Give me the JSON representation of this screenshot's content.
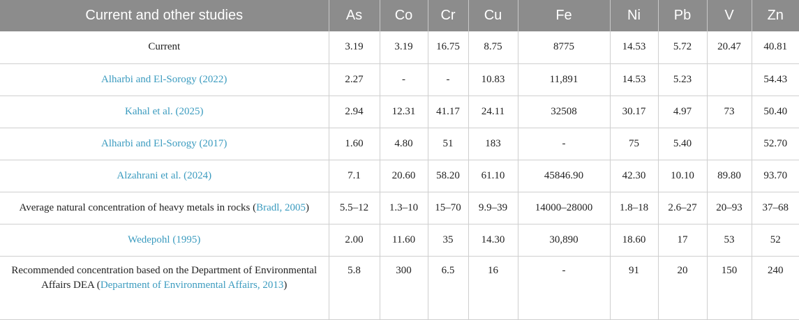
{
  "table": {
    "headers": [
      "Current and other studies",
      "As",
      "Co",
      "Cr",
      "Cu",
      "Fe",
      "Ni",
      "Pb",
      "V",
      "Zn"
    ],
    "rows": [
      {
        "study": {
          "pre": "Current",
          "ref": "",
          "post": ""
        },
        "values": [
          "3.19",
          "3.19",
          "16.75",
          "8.75",
          "8775",
          "14.53",
          "5.72",
          "20.47",
          "40.81"
        ]
      },
      {
        "study": {
          "pre": "",
          "ref": "Alharbi and El-Sorogy (2022)",
          "post": ""
        },
        "values": [
          "2.27",
          "-",
          "-",
          "10.83",
          "11,891",
          "14.53",
          "5.23",
          "",
          "54.43"
        ]
      },
      {
        "study": {
          "pre": "",
          "ref": "Kahal et al. (2025)",
          "post": ""
        },
        "values": [
          "2.94",
          "12.31",
          "41.17",
          "24.11",
          "32508",
          "30.17",
          "4.97",
          "73",
          "50.40"
        ]
      },
      {
        "study": {
          "pre": "",
          "ref": "Alharbi and El-Sorogy (2017)",
          "post": ""
        },
        "values": [
          "1.60",
          "4.80",
          "51",
          "183",
          "-",
          "75",
          "5.40",
          "",
          "52.70"
        ]
      },
      {
        "study": {
          "pre": "",
          "ref": "Alzahrani et al. (2024)",
          "post": ""
        },
        "values": [
          "7.1",
          "20.60",
          "58.20",
          "61.10",
          "45846.90",
          "42.30",
          "10.10",
          "89.80",
          "93.70"
        ]
      },
      {
        "study": {
          "pre": "Average natural concentration of heavy metals in rocks (",
          "ref": "Bradl, 2005",
          "post": ")"
        },
        "values": [
          "5.5–12",
          "1.3–10",
          "15–70",
          "9.9–39",
          "14000–28000",
          "1.8–18",
          "2.6–27",
          "20–93",
          "37–68"
        ]
      },
      {
        "study": {
          "pre": "",
          "ref": "Wedepohl (1995)",
          "post": ""
        },
        "values": [
          "2.00",
          "11.60",
          "35",
          "14.30",
          "30,890",
          "18.60",
          "17",
          "53",
          "52"
        ]
      },
      {
        "study": {
          "pre": "Recommended concentration based on the Department of Environmental Affairs DEA (",
          "ref": "Department of Environmental Affairs, 2013",
          "post": ")"
        },
        "values": [
          "5.8",
          "300",
          "6.5",
          "16",
          "-",
          "91",
          "20",
          "150",
          "240"
        ]
      }
    ]
  }
}
